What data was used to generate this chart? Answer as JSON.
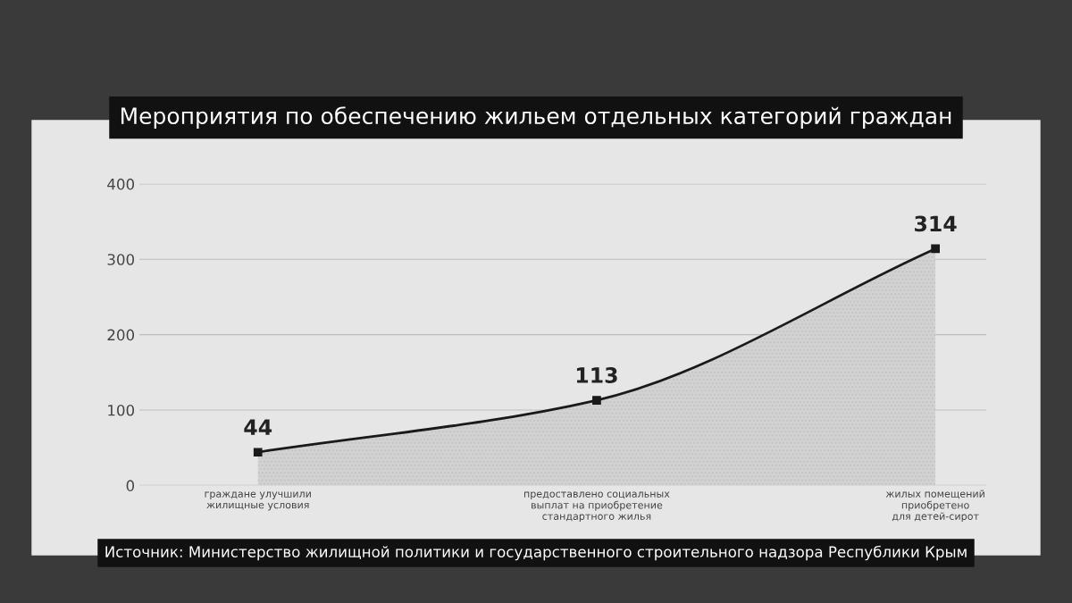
{
  "chart_data": {
    "type": "area",
    "title": "Мероприятия по обеспечению жильем отдельных категорий граждан",
    "categories": [
      "граждане улучшили\nжилищные условия",
      "предоставлено социальных\nвыплат на приобретение\nстандартного жилья",
      "жилых помещений\nприобретено\nдля детей-сирот"
    ],
    "series": [
      {
        "color": "#1a1a1a",
        "values": [
          44,
          113,
          314
        ]
      }
    ],
    "ylim": [
      0,
      400
    ],
    "yticks": [
      0,
      100,
      200,
      300,
      400
    ],
    "grid": "y",
    "data_labels": true,
    "marker": "square",
    "line_style": "solid",
    "annotations": [
      "Источник: Министерство жилищной политики и государственного строительного надзора Республики Крым"
    ]
  }
}
